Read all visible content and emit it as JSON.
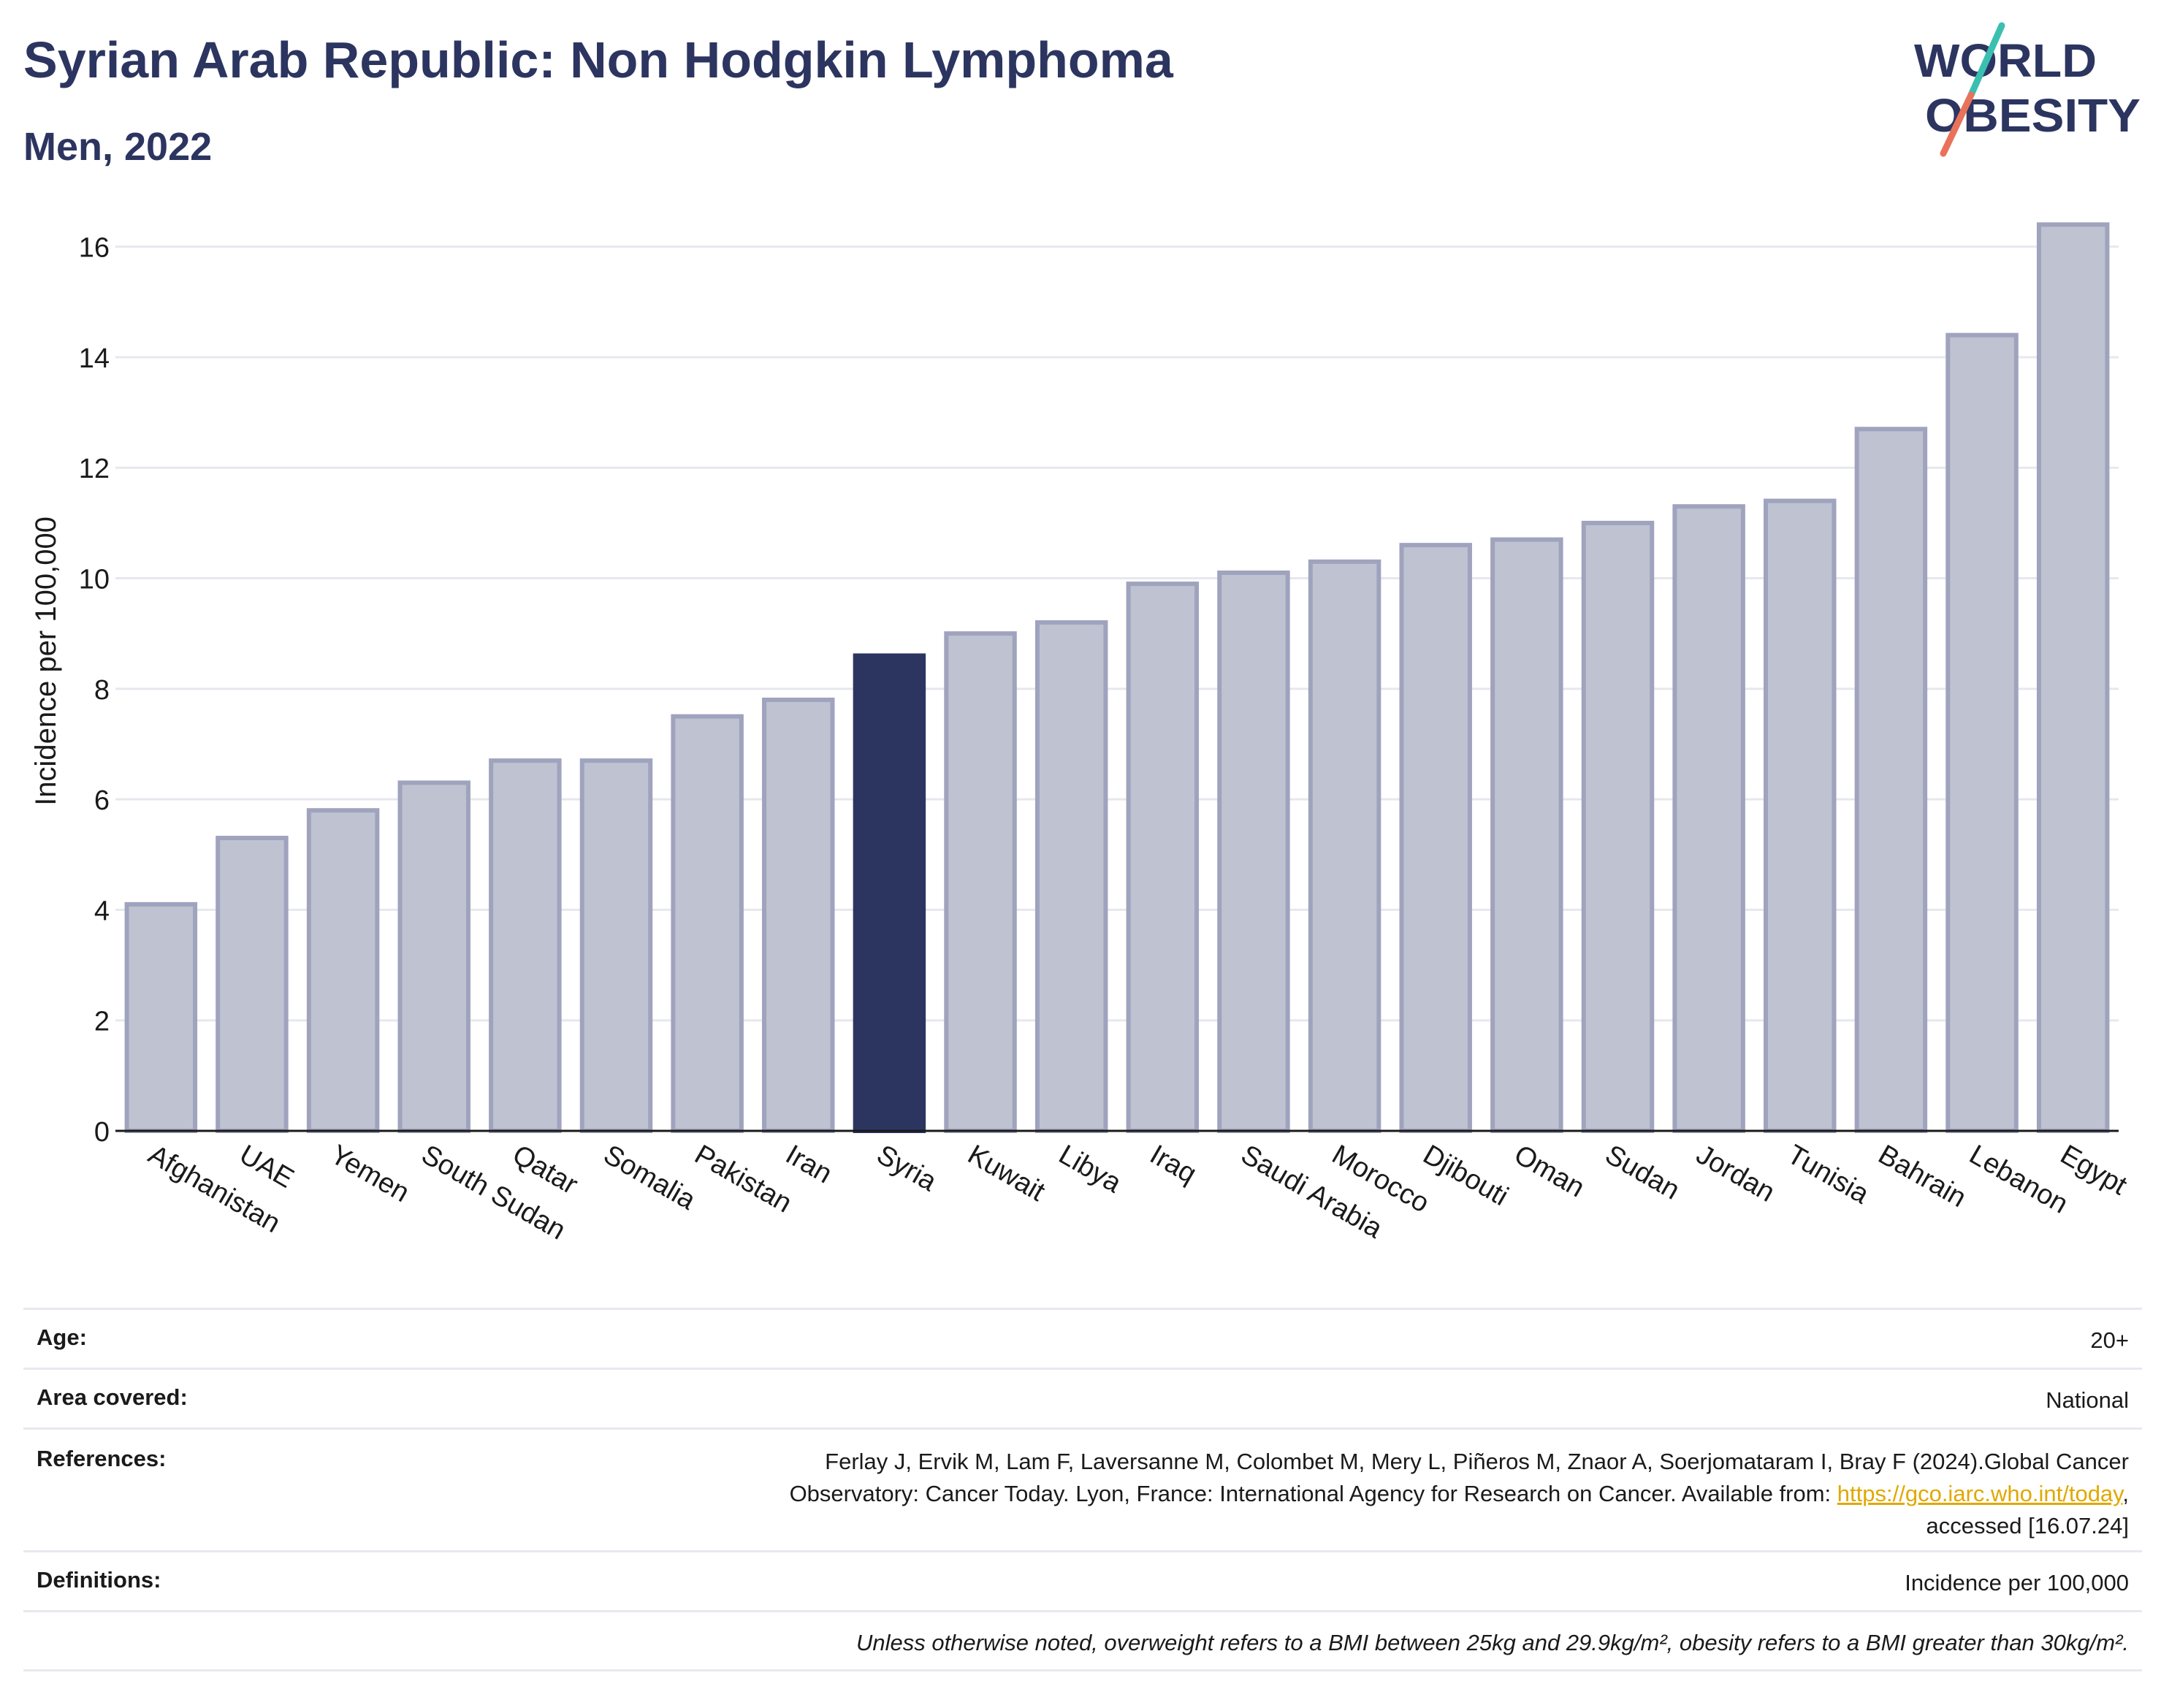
{
  "header": {
    "title": "Syrian Arab Republic: Non Hodgkin Lymphoma",
    "subtitle": "Men, 2022"
  },
  "logo": {
    "line1": "WORLD",
    "line2": "OBESITY",
    "text_color": "#2c3560",
    "slash_top_color": "#3bbfb0",
    "slash_bottom_color": "#e8735a"
  },
  "colors": {
    "bar_default_fill": "#bfc2d1",
    "bar_default_stroke": "#9fa3bd",
    "bar_highlight": "#2c3560",
    "grid": "#e6e8ee",
    "axis": "#1a1a1a"
  },
  "chart_data": {
    "type": "bar",
    "ylabel": "Incidence per 100,000",
    "ylim": [
      0,
      17
    ],
    "yticks": [
      0,
      2,
      4,
      6,
      8,
      10,
      12,
      14,
      16
    ],
    "grid": true,
    "highlight": "Syria",
    "categories": [
      "Afghanistan",
      "UAE",
      "Yemen",
      "South Sudan",
      "Qatar",
      "Somalia",
      "Pakistan",
      "Iran",
      "Syria",
      "Kuwait",
      "Libya",
      "Iraq",
      "Saudi Arabia",
      "Morocco",
      "Djibouti",
      "Oman",
      "Sudan",
      "Jordan",
      "Tunisia",
      "Bahrain",
      "Lebanon",
      "Egypt"
    ],
    "values": [
      4.1,
      5.3,
      5.8,
      6.3,
      6.7,
      6.7,
      7.5,
      7.8,
      8.6,
      9.0,
      9.2,
      9.9,
      10.1,
      10.3,
      10.6,
      10.7,
      11.0,
      11.3,
      11.4,
      12.7,
      14.4,
      16.4
    ]
  },
  "info": {
    "age_label": "Age:",
    "age_value": "20+",
    "area_label": "Area covered:",
    "area_value": "National",
    "references_label": "References:",
    "references_line1": "Ferlay J, Ervik M, Lam F, Laversanne M, Colombet M, Mery L, Piñeros M, Znaor A, Soerjomataram I, Bray F (2024).Global Cancer",
    "references_line2_prefix": "Observatory: Cancer Today. Lyon, France: International Agency for Research on Cancer. Available from: ",
    "references_link": "https://gco.iarc.who.int/today",
    "references_line2_suffix": ",",
    "references_line3": "accessed [16.07.24]",
    "definitions_label": "Definitions:",
    "definitions_value": "Incidence per 100,000",
    "note": "Unless otherwise noted, overweight refers to a BMI between 25kg and 29.9kg/m², obesity refers to a BMI greater than 30kg/m²."
  }
}
